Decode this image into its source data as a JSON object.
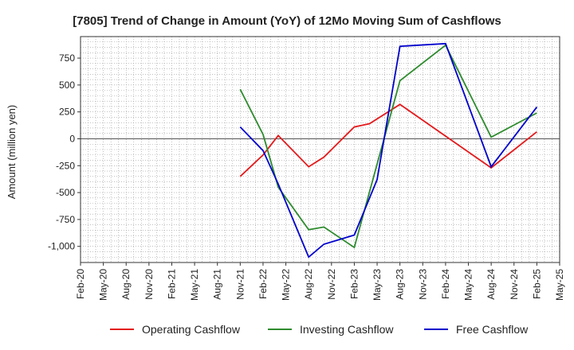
{
  "chart_data": {
    "type": "line",
    "title": "[7805]  Trend of Change in Amount (YoY) of 12Mo Moving Sum of Cashflows",
    "xlabel": "",
    "ylabel": "Amount (million yen)",
    "ylim": [
      -1150,
      950
    ],
    "yticks": [
      750,
      500,
      250,
      0,
      -250,
      -500,
      -750,
      -1000
    ],
    "ytick_labels": [
      "750",
      "500",
      "250",
      "0",
      "-250",
      "-500",
      "-750",
      "-1,000"
    ],
    "x_start": "Feb-20",
    "x_months_total": 63,
    "categories": [
      "Feb-20",
      "May-20",
      "Aug-20",
      "Nov-20",
      "Feb-21",
      "May-21",
      "Aug-21",
      "Nov-21",
      "Feb-22",
      "May-22",
      "Aug-22",
      "Nov-22",
      "Feb-23",
      "May-23",
      "Aug-23",
      "Nov-23",
      "Feb-24",
      "May-24",
      "Aug-24",
      "Nov-24",
      "Feb-25",
      "May-25"
    ],
    "grid": true,
    "legend_position": "bottom",
    "series": [
      {
        "name": "Operating Cashflow",
        "color": "#e31a1c",
        "x": [
          "Nov-21",
          "Feb-22",
          "Apr-22",
          "Aug-22",
          "Oct-22",
          "Feb-23",
          "Apr-23",
          "Aug-23",
          "Aug-24",
          "Feb-25"
        ],
        "x_month_index": [
          21,
          24,
          26,
          30,
          32,
          36,
          38,
          42,
          54,
          60
        ],
        "values": [
          -350,
          -150,
          30,
          -260,
          -170,
          110,
          140,
          320,
          -270,
          65
        ]
      },
      {
        "name": "Investing Cashflow",
        "color": "#2e8b2e",
        "x": [
          "Nov-21",
          "Feb-22",
          "Apr-22",
          "Aug-22",
          "Oct-22",
          "Feb-23",
          "Aug-23",
          "Feb-24",
          "Aug-24",
          "Feb-25"
        ],
        "x_month_index": [
          21,
          24,
          26,
          30,
          32,
          36,
          42,
          48,
          54,
          60
        ],
        "values": [
          460,
          40,
          -450,
          -845,
          -820,
          -1010,
          540,
          870,
          15,
          240
        ]
      },
      {
        "name": "Free Cashflow",
        "color": "#0000cc",
        "x": [
          "Nov-21",
          "Feb-22",
          "Apr-22",
          "Aug-22",
          "Oct-22",
          "Feb-23",
          "May-23",
          "Aug-23",
          "Feb-24",
          "Aug-24",
          "Feb-25"
        ],
        "x_month_index": [
          21,
          24,
          26,
          30,
          32,
          36,
          39,
          42,
          48,
          54,
          60
        ],
        "values": [
          110,
          -110,
          -420,
          -1100,
          -980,
          -895,
          -380,
          860,
          885,
          -260,
          295
        ]
      }
    ]
  }
}
